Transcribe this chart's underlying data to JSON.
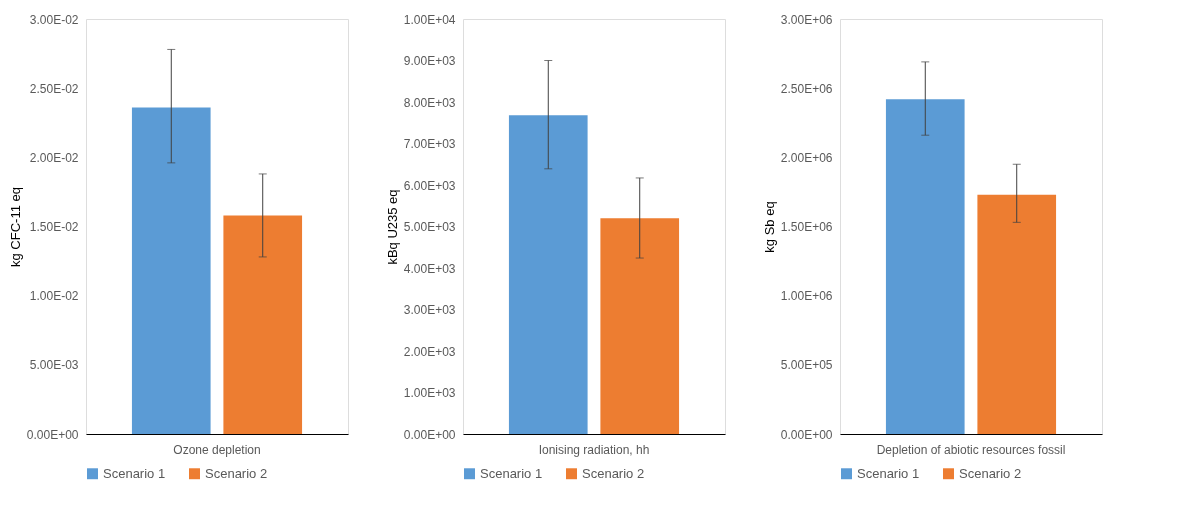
{
  "chart_data": [
    {
      "type": "bar",
      "categories": [
        "Ozone depletion"
      ],
      "ylabel": "kg CFC-11 eq",
      "ylim": [
        0,
        0.03
      ],
      "yticks": [
        {
          "value": 0,
          "label": "0.00E+00"
        },
        {
          "value": 0.005,
          "label": "5.00E-03"
        },
        {
          "value": 0.01,
          "label": "1.00E-02"
        },
        {
          "value": 0.015,
          "label": "1.50E-02"
        },
        {
          "value": 0.02,
          "label": "2.00E-02"
        },
        {
          "value": 0.025,
          "label": "2.50E-02"
        },
        {
          "value": 0.03,
          "label": "3.00E-02"
        }
      ],
      "legend": "bottom",
      "series": [
        {
          "name": "Scenario 1",
          "color": "#5b9bd5",
          "values": [
            0.0236
          ],
          "errors": [
            [
              0.0196,
              0.0278
            ]
          ]
        },
        {
          "name": "Scenario 2",
          "color": "#ed7d31",
          "values": [
            0.0158
          ],
          "errors": [
            [
              0.0128,
              0.0188
            ]
          ]
        }
      ]
    },
    {
      "type": "bar",
      "categories": [
        "Ionising radiation, hh"
      ],
      "ylabel": "kBq U235 eq",
      "ylim": [
        0,
        10000
      ],
      "yticks": [
        {
          "value": 0,
          "label": "0.00E+00"
        },
        {
          "value": 1000,
          "label": "1.00E+03"
        },
        {
          "value": 2000,
          "label": "2.00E+03"
        },
        {
          "value": 3000,
          "label": "3.00E+03"
        },
        {
          "value": 4000,
          "label": "4.00E+03"
        },
        {
          "value": 5000,
          "label": "5.00E+03"
        },
        {
          "value": 6000,
          "label": "6.00E+03"
        },
        {
          "value": 7000,
          "label": "7.00E+03"
        },
        {
          "value": 8000,
          "label": "8.00E+03"
        },
        {
          "value": 9000,
          "label": "9.00E+03"
        },
        {
          "value": 10000,
          "label": "1.00E+04"
        }
      ],
      "legend": "bottom",
      "series": [
        {
          "name": "Scenario 1",
          "color": "#5b9bd5",
          "values": [
            7680
          ],
          "errors": [
            [
              6390,
              9000
            ]
          ]
        },
        {
          "name": "Scenario 2",
          "color": "#ed7d31",
          "values": [
            5200
          ],
          "errors": [
            [
              4240,
              6170
            ]
          ]
        }
      ]
    },
    {
      "type": "bar",
      "categories": [
        "Depletion of abiotic resources fossil"
      ],
      "ylabel": "kg Sb eq",
      "ylim": [
        0,
        3000000
      ],
      "yticks": [
        {
          "value": 0,
          "label": "0.00E+00"
        },
        {
          "value": 500000,
          "label": "5.00E+05"
        },
        {
          "value": 1000000,
          "label": "1.00E+06"
        },
        {
          "value": 1500000,
          "label": "1.50E+06"
        },
        {
          "value": 2000000,
          "label": "2.00E+06"
        },
        {
          "value": 2500000,
          "label": "2.50E+06"
        },
        {
          "value": 3000000,
          "label": "3.00E+06"
        }
      ],
      "legend": "bottom",
      "series": [
        {
          "name": "Scenario 1",
          "color": "#5b9bd5",
          "values": [
            2420000
          ],
          "errors": [
            [
              2160000,
              2690000
            ]
          ]
        },
        {
          "name": "Scenario 2",
          "color": "#ed7d31",
          "values": [
            1730000
          ],
          "errors": [
            [
              1530000,
              1950000
            ]
          ]
        }
      ]
    }
  ]
}
